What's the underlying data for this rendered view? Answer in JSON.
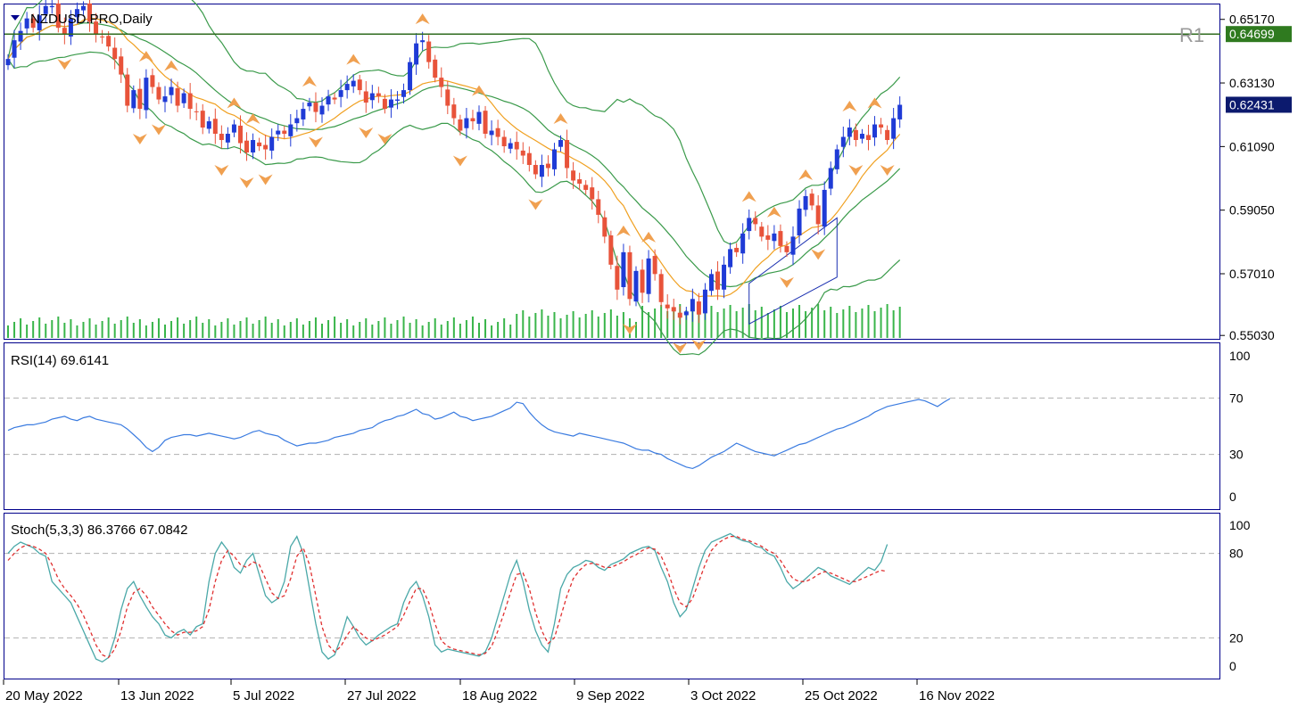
{
  "main_panel": {
    "symbol_label": "NZDUSD.PRO,Daily",
    "resistance_label": "R1",
    "resistance_price": "0.64699",
    "current_price": "0.62431",
    "price_ticks": [
      "0.65170",
      "0.63130",
      "0.61090",
      "0.59050",
      "0.57010",
      "0.55030"
    ],
    "colors": {
      "bull": "#1f3bd6",
      "bear": "#e8533a",
      "upper_band": "#3a9a4a",
      "ma": "#f0a020",
      "volume": "#39b54a",
      "fractal": "#f0a050",
      "resistance": "#2f6b1f",
      "resistance_tag_bg": "#2f7a1f",
      "price_tag_bg": "#0c1a6e",
      "channel": "#1a2fb0"
    }
  },
  "rsi_panel": {
    "label": "RSI(14) 69.6141",
    "ticks": [
      "100",
      "70",
      "30",
      "0"
    ],
    "color": "#3a7be0"
  },
  "stoch_panel": {
    "label": "Stoch(5,3,3) 86.3766 67.0842",
    "ticks": [
      "100",
      "80",
      "20",
      "0"
    ],
    "main_color": "#4aa8a8",
    "signal_color": "#e03030"
  },
  "x_axis": {
    "labels": [
      "20 May 2022",
      "13 Jun 2022",
      "5 Jul 2022",
      "27 Jul 2022",
      "18 Aug 2022",
      "9 Sep 2022",
      "3 Oct 2022",
      "25 Oct 2022",
      "16 Nov 2022"
    ]
  },
  "chart_data": [
    {
      "type": "candlestick",
      "series_name": "NZDUSD.PRO Daily",
      "y_ticks": [
        0.6517,
        0.6313,
        0.6109,
        0.5905,
        0.5701,
        0.5503
      ],
      "ylim": [
        0.5495,
        0.6562
      ],
      "resistance_R1": 0.64699,
      "last_price": 0.62431,
      "closes": [
        0.639,
        0.645,
        0.648,
        0.652,
        0.649,
        0.653,
        0.656,
        0.656,
        0.649,
        0.647,
        0.652,
        0.655,
        0.656,
        0.651,
        0.647,
        0.646,
        0.643,
        0.639,
        0.634,
        0.624,
        0.629,
        0.623,
        0.633,
        0.63,
        0.626,
        0.627,
        0.63,
        0.624,
        0.628,
        0.623,
        0.622,
        0.617,
        0.619,
        0.615,
        0.613,
        0.615,
        0.618,
        0.612,
        0.609,
        0.613,
        0.611,
        0.61,
        0.614,
        0.616,
        0.615,
        0.618,
        0.62,
        0.623,
        0.625,
        0.622,
        0.624,
        0.627,
        0.626,
        0.629,
        0.631,
        0.632,
        0.629,
        0.625,
        0.628,
        0.627,
        0.623,
        0.626,
        0.626,
        0.629,
        0.638,
        0.644,
        0.645,
        0.638,
        0.633,
        0.63,
        0.624,
        0.62,
        0.616,
        0.62,
        0.619,
        0.622,
        0.615,
        0.616,
        0.614,
        0.611,
        0.612,
        0.61,
        0.608,
        0.605,
        0.602,
        0.605,
        0.604,
        0.61,
        0.613,
        0.604,
        0.6,
        0.599,
        0.597,
        0.594,
        0.589,
        0.582,
        0.573,
        0.565,
        0.577,
        0.562,
        0.571,
        0.564,
        0.575,
        0.57,
        0.561,
        0.559,
        0.558,
        0.556,
        0.558,
        0.562,
        0.557,
        0.565,
        0.57,
        0.565,
        0.573,
        0.578,
        0.577,
        0.583,
        0.588,
        0.586,
        0.582,
        0.581,
        0.583,
        0.579,
        0.577,
        0.582,
        0.591,
        0.595,
        0.592,
        0.586,
        0.597,
        0.604,
        0.61,
        0.614,
        0.617,
        0.613,
        0.615,
        0.613,
        0.618,
        0.617,
        0.613,
        0.62,
        0.6243
      ],
      "volume_present": true,
      "indicators": [
        "Bollinger Bands",
        "Moving Average",
        "Fractals",
        "Volumes",
        "Trend channel"
      ]
    },
    {
      "type": "line",
      "series_name": "RSI(14)",
      "value": 69.6141,
      "ylim": [
        0,
        100
      ],
      "levels": [
        30,
        70
      ],
      "values": [
        47,
        49,
        50,
        51,
        51,
        52,
        53,
        55,
        56,
        57,
        55,
        54,
        56,
        57,
        55,
        54,
        53,
        52,
        51,
        48,
        44,
        40,
        35,
        32,
        35,
        40,
        42,
        43,
        44,
        44,
        43,
        44,
        45,
        44,
        43,
        42,
        41,
        42,
        44,
        46,
        47,
        45,
        44,
        43,
        40,
        38,
        36,
        37,
        38,
        38,
        39,
        40,
        42,
        43,
        44,
        45,
        47,
        48,
        49,
        52,
        54,
        55,
        57,
        58,
        60,
        62,
        59,
        58,
        55,
        56,
        58,
        60,
        57,
        56,
        54,
        55,
        56,
        57,
        59,
        61,
        63,
        67,
        66,
        60,
        55,
        51,
        48,
        46,
        45,
        44,
        43,
        45,
        44,
        43,
        42,
        41,
        40,
        39,
        38,
        36,
        34,
        33,
        33,
        31,
        30,
        27,
        25,
        23,
        21,
        20,
        22,
        25,
        28,
        30,
        32,
        35,
        38,
        36,
        34,
        32,
        31,
        30,
        29,
        31,
        33,
        35,
        37,
        38,
        40,
        42,
        44,
        46,
        48,
        49,
        51,
        53,
        55,
        57,
        60,
        62,
        64,
        65,
        66,
        67,
        68,
        69,
        68,
        66,
        64,
        67,
        69.6
      ]
    },
    {
      "type": "line",
      "series_name": "Stoch(5,3,3)",
      "main_value": 86.3766,
      "signal_value": 67.0842,
      "ylim": [
        0,
        100
      ],
      "levels": [
        20,
        80
      ],
      "main": [
        80,
        85,
        88,
        86,
        84,
        80,
        78,
        60,
        55,
        50,
        45,
        35,
        25,
        15,
        5,
        3,
        6,
        20,
        40,
        55,
        60,
        50,
        42,
        35,
        30,
        22,
        20,
        24,
        26,
        22,
        28,
        30,
        60,
        80,
        88,
        82,
        70,
        66,
        75,
        80,
        65,
        50,
        45,
        48,
        60,
        85,
        92,
        80,
        55,
        30,
        10,
        5,
        8,
        20,
        35,
        28,
        20,
        15,
        18,
        22,
        25,
        28,
        30,
        45,
        55,
        60,
        50,
        35,
        15,
        10,
        12,
        11,
        10,
        9,
        8,
        7,
        10,
        20,
        35,
        50,
        65,
        75,
        60,
        40,
        25,
        15,
        10,
        30,
        55,
        65,
        70,
        72,
        75,
        74,
        70,
        68,
        72,
        74,
        76,
        80,
        82,
        84,
        85,
        82,
        70,
        60,
        45,
        35,
        40,
        55,
        70,
        82,
        88,
        90,
        92,
        94,
        91,
        89,
        88,
        85,
        84,
        80,
        78,
        70,
        60,
        55,
        58,
        62,
        66,
        70,
        68,
        64,
        62,
        60,
        58,
        62,
        66,
        70,
        68,
        74,
        86.4
      ],
      "signal": [
        75,
        80,
        84,
        86,
        85,
        83,
        80,
        72,
        62,
        55,
        50,
        44,
        36,
        26,
        15,
        8,
        6,
        12,
        25,
        42,
        52,
        55,
        50,
        42,
        36,
        30,
        25,
        22,
        24,
        24,
        25,
        28,
        40,
        60,
        75,
        82,
        78,
        72,
        70,
        74,
        72,
        62,
        52,
        48,
        50,
        62,
        78,
        84,
        72,
        50,
        28,
        15,
        10,
        14,
        22,
        28,
        24,
        20,
        18,
        20,
        22,
        25,
        28,
        36,
        46,
        55,
        55,
        45,
        30,
        18,
        14,
        12,
        11,
        10,
        9,
        8,
        9,
        14,
        25,
        38,
        52,
        65,
        66,
        55,
        38,
        25,
        16,
        20,
        35,
        50,
        62,
        68,
        72,
        73,
        72,
        70,
        70,
        72,
        74,
        77,
        79,
        82,
        84,
        83,
        78,
        68,
        55,
        45,
        42,
        48,
        60,
        72,
        82,
        87,
        90,
        92,
        92,
        90,
        89,
        87,
        85,
        82,
        80,
        75,
        68,
        62,
        60,
        60,
        62,
        65,
        67,
        66,
        64,
        62,
        60,
        60,
        62,
        64,
        66,
        68,
        67.1
      ]
    }
  ]
}
